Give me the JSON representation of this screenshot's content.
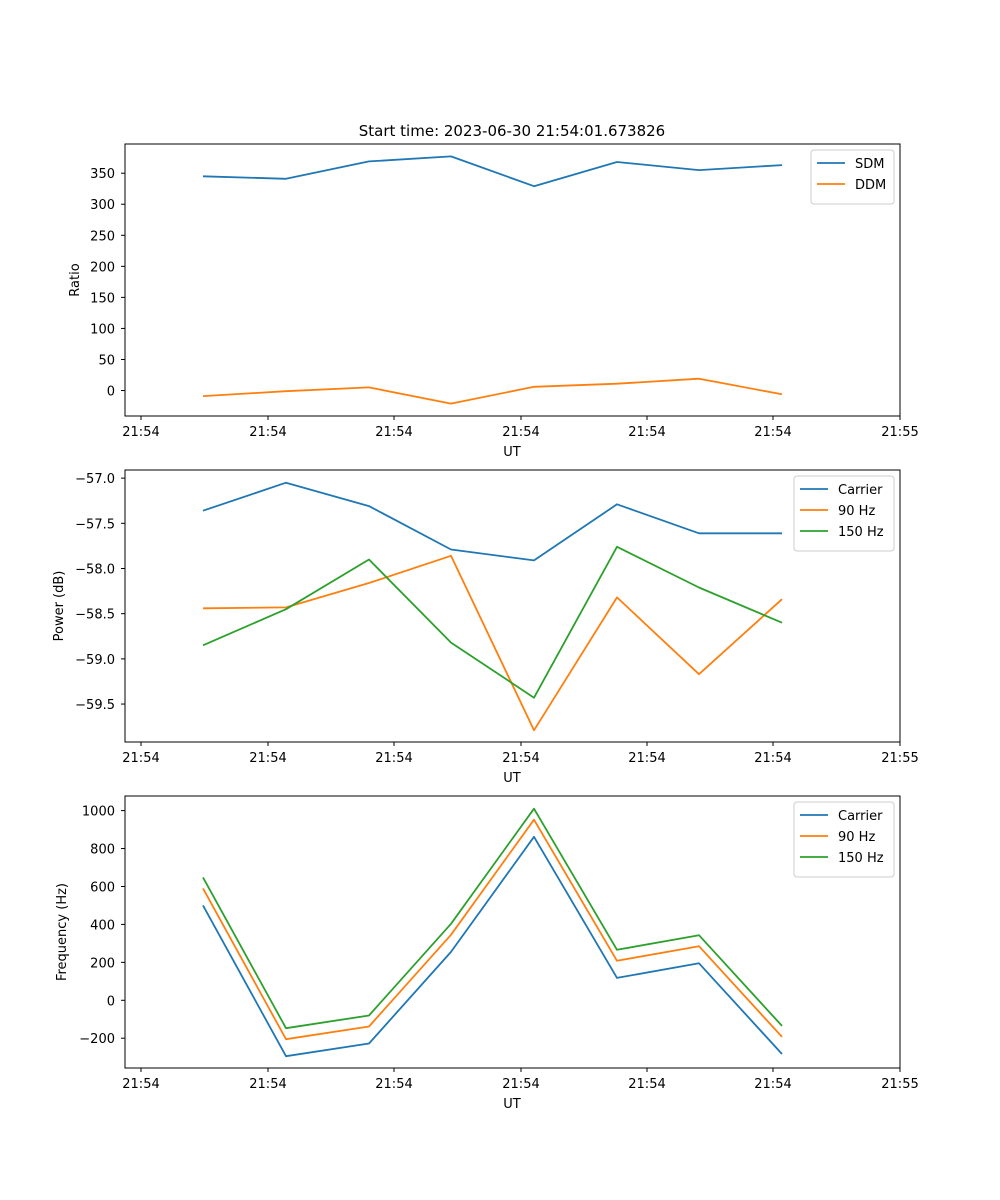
{
  "figure_title": "Start time: 2023-06-30 21:54:01.673826",
  "colors": {
    "blue": "#1f77b4",
    "orange": "#ff7f0e",
    "green": "#2ca02c"
  },
  "chart_data": [
    {
      "type": "line",
      "xlabel": "UT",
      "ylabel": "Ratio",
      "x_tick_labels": [
        "21:54",
        "21:54",
        "21:54",
        "21:54",
        "21:54",
        "21:54",
        "21:54",
        "21:55"
      ],
      "y_ticks": [
        0,
        50,
        100,
        150,
        200,
        250,
        300,
        350
      ],
      "y_tick_labels": [
        "0",
        "50",
        "100",
        "150",
        "200",
        "250",
        "300",
        "350"
      ],
      "ylim": [
        -41,
        397
      ],
      "legend": "upper right",
      "series": [
        {
          "name": "SDM",
          "color": "#1f77b4",
          "values": [
            345,
            341,
            369,
            377,
            329,
            368,
            355,
            363
          ]
        },
        {
          "name": "DDM",
          "color": "#ff7f0e",
          "values": [
            -9,
            -1,
            5,
            -21,
            6,
            11,
            19,
            -6
          ]
        }
      ]
    },
    {
      "type": "line",
      "xlabel": "UT",
      "ylabel": "Power (dB)",
      "x_tick_labels": [
        "21:54",
        "21:54",
        "21:54",
        "21:54",
        "21:54",
        "21:54",
        "21:54",
        "21:55"
      ],
      "y_ticks": [
        -59.5,
        -59.0,
        -58.5,
        -58.0,
        -57.5,
        -57.0
      ],
      "y_tick_labels": [
        "−59.5",
        "−59.0",
        "−58.5",
        "−58.0",
        "−57.5",
        "−57.0"
      ],
      "ylim": [
        -59.92,
        -56.91
      ],
      "legend": "upper right",
      "series": [
        {
          "name": "Carrier",
          "color": "#1f77b4",
          "values": [
            -57.36,
            -57.05,
            -57.31,
            -57.79,
            -57.91,
            -57.29,
            -57.61,
            -57.61
          ]
        },
        {
          "name": "90 Hz",
          "color": "#ff7f0e",
          "values": [
            -58.44,
            -58.43,
            -58.16,
            -57.86,
            -59.79,
            -58.32,
            -59.17,
            -58.34
          ]
        },
        {
          "name": "150 Hz",
          "color": "#2ca02c",
          "values": [
            -58.85,
            -58.45,
            -57.9,
            -58.82,
            -59.43,
            -57.76,
            -58.21,
            -58.6
          ]
        }
      ]
    },
    {
      "type": "line",
      "xlabel": "UT",
      "ylabel": "Frequency (Hz)",
      "x_tick_labels": [
        "21:54",
        "21:54",
        "21:54",
        "21:54",
        "21:54",
        "21:54",
        "21:54",
        "21:55"
      ],
      "y_ticks": [
        -200,
        0,
        200,
        400,
        600,
        800,
        1000
      ],
      "y_tick_labels": [
        "−200",
        "0",
        "200",
        "400",
        "600",
        "800",
        "1000"
      ],
      "ylim": [
        -357,
        1077
      ],
      "legend": "upper right",
      "series": [
        {
          "name": "Carrier",
          "color": "#1f77b4",
          "values": [
            500,
            -295,
            -228,
            255,
            862,
            118,
            195,
            -283
          ]
        },
        {
          "name": "90 Hz",
          "color": "#ff7f0e",
          "values": [
            590,
            -205,
            -138,
            345,
            952,
            208,
            285,
            -193
          ]
        },
        {
          "name": "150 Hz",
          "color": "#2ca02c",
          "values": [
            648,
            -147,
            -80,
            403,
            1010,
            266,
            343,
            -135
          ]
        }
      ]
    }
  ]
}
